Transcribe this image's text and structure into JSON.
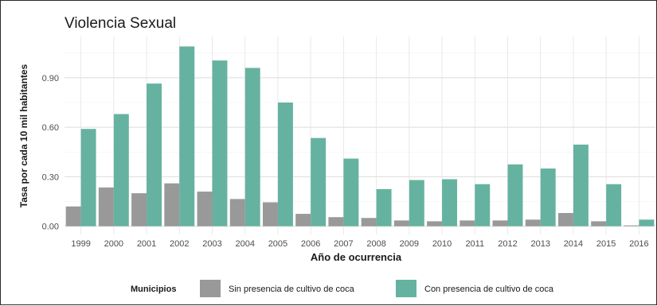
{
  "chart_data": {
    "type": "bar",
    "title": "Violencia Sexual",
    "xlabel": "Año de ocurrencia",
    "ylabel": "Tasa por cada 10 mil habitantes",
    "categories": [
      "1999",
      "2000",
      "2001",
      "2002",
      "2003",
      "2004",
      "2005",
      "2006",
      "2007",
      "2008",
      "2009",
      "2010",
      "2011",
      "2012",
      "2013",
      "2014",
      "2015",
      "2016"
    ],
    "series": [
      {
        "name": "Sin presencia de cultivo de coca",
        "color": "#999999",
        "values": [
          0.12,
          0.235,
          0.2,
          0.26,
          0.21,
          0.165,
          0.145,
          0.075,
          0.055,
          0.05,
          0.035,
          0.03,
          0.035,
          0.035,
          0.04,
          0.08,
          0.03,
          0.005
        ]
      },
      {
        "name": "Con presencia de cultivo de coca",
        "color": "#66b2a0",
        "values": [
          0.59,
          0.68,
          0.865,
          1.09,
          1.005,
          0.96,
          0.75,
          0.535,
          0.41,
          0.225,
          0.28,
          0.285,
          0.255,
          0.375,
          0.35,
          0.495,
          0.255,
          0.04
        ]
      }
    ],
    "yticks": [
      "0.00",
      "0.30",
      "0.60",
      "0.90"
    ],
    "ytick_values": [
      0,
      0.3,
      0.6,
      0.9
    ],
    "ylim": [
      -0.05,
      1.15
    ],
    "grid": true,
    "legend": {
      "title": "Municipios",
      "placement": "bottom"
    }
  }
}
